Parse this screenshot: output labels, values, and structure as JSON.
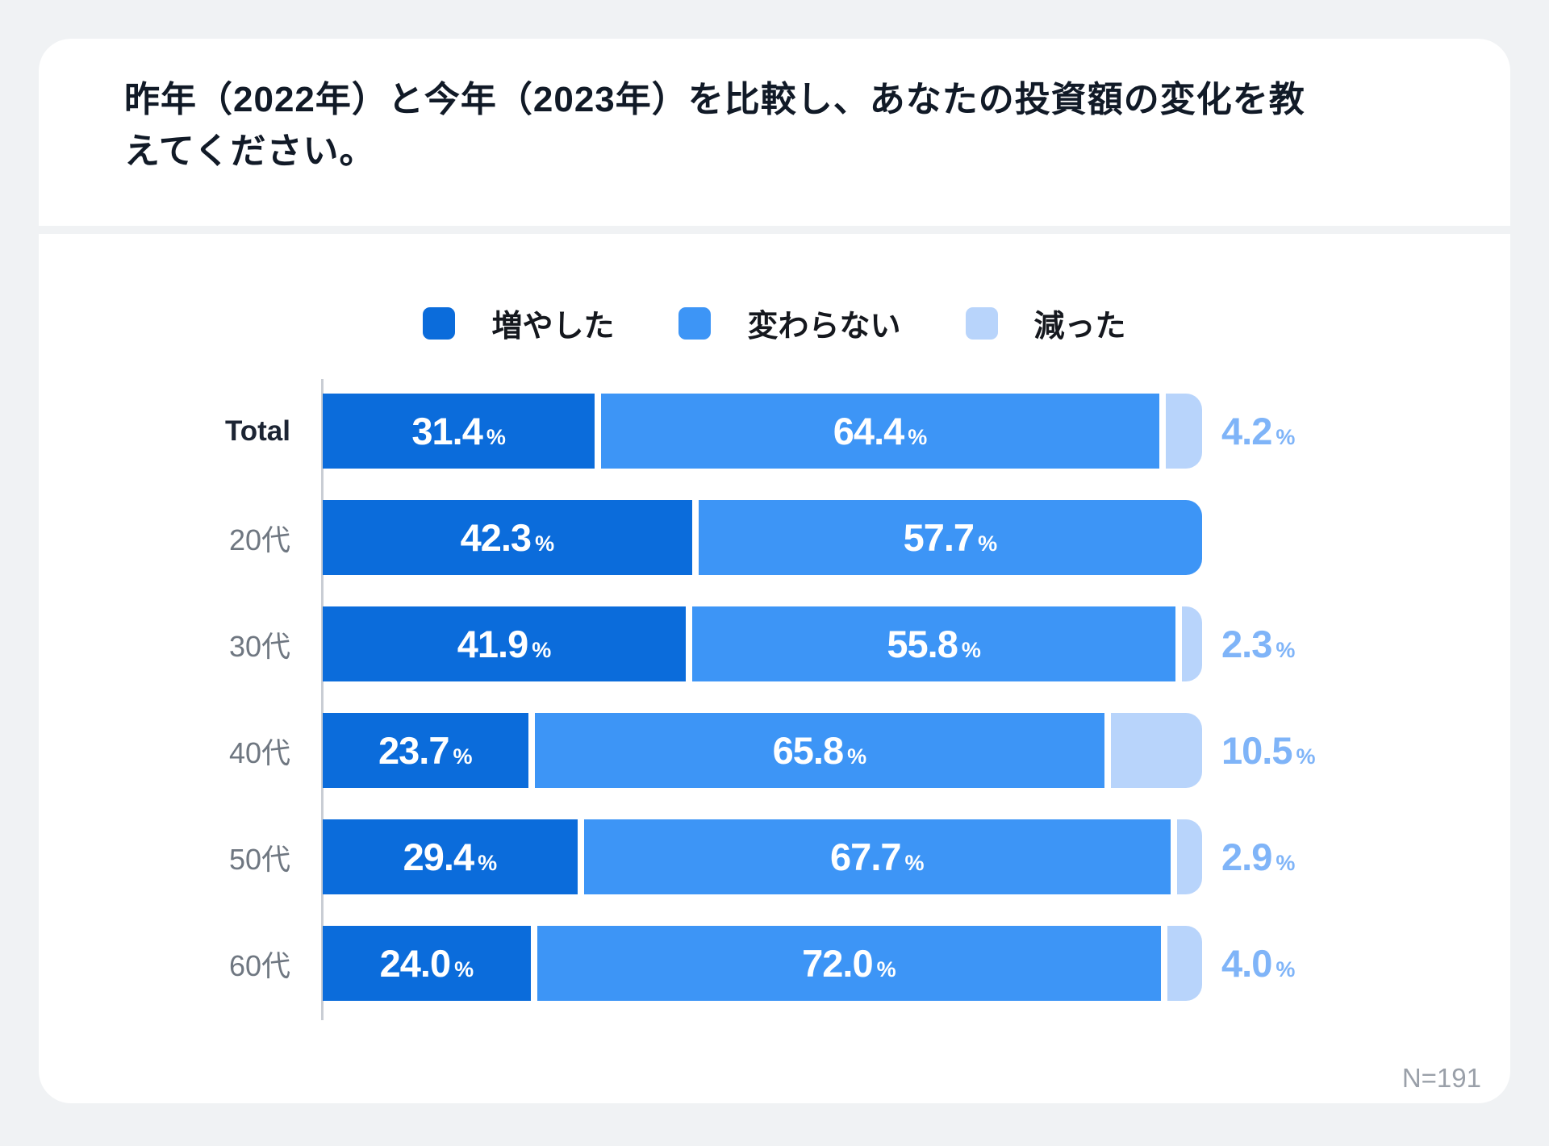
{
  "page": {
    "background": "#F0F2F4"
  },
  "card": {
    "background": "#FFFFFF",
    "corner_radius": 40
  },
  "header": {
    "title": "昨年（2022年）と今年（2023年）を比較し、あなたの投資額の変化を教えてください。",
    "title_lines": [
      "昨年（2022年）と今年（2023年）を比較し、あなたの投資額の変化を教",
      "えてください。"
    ]
  },
  "footnote": "N=191",
  "chart_data": {
    "type": "bar",
    "orientation": "horizontal",
    "stacked": true,
    "unit": "%",
    "title": "昨年（2022年）と今年（2023年）を比較し、あなたの投資額の変化を教えてください。",
    "categories": [
      "Total",
      "20代",
      "30代",
      "40代",
      "50代",
      "60代"
    ],
    "series": [
      {
        "key": "increase",
        "name": "増やした",
        "color": "#0B6CDB",
        "values": [
          31.4,
          42.3,
          41.9,
          23.7,
          29.4,
          24.0
        ]
      },
      {
        "key": "same",
        "name": "変わらない",
        "color": "#3D95F6",
        "values": [
          64.4,
          57.7,
          55.8,
          65.8,
          67.7,
          72.0
        ]
      },
      {
        "key": "decrease",
        "name": "減った",
        "color": "#B8D4FB",
        "values": [
          4.2,
          0.0,
          2.3,
          10.5,
          2.9,
          4.0
        ]
      }
    ],
    "xlim": [
      0,
      100
    ],
    "grid": false,
    "legend_position": "top",
    "value_label_format": "one-decimal-percent",
    "inside_label_color": "#FFFFFF",
    "outside_label_color": "#7FB4F8",
    "axis_line_color": "#C9CDD4",
    "sample_note": "N=191"
  }
}
